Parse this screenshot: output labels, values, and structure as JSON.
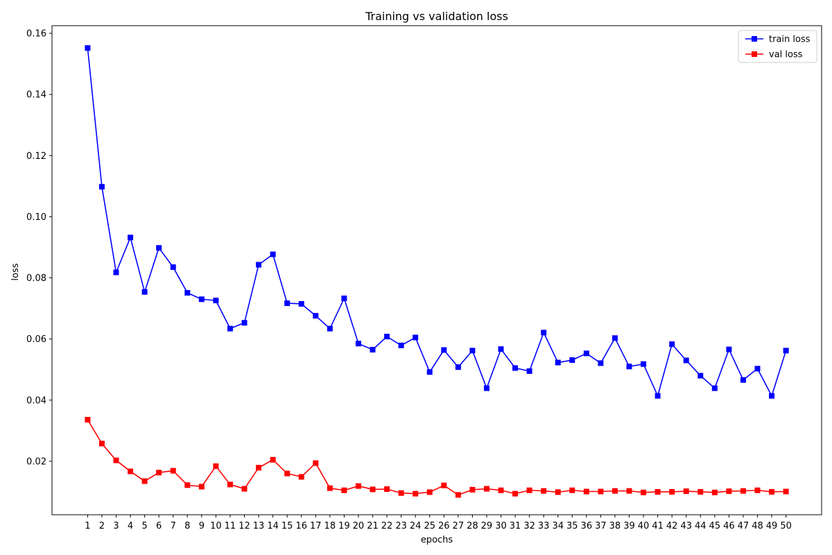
{
  "chart_data": {
    "type": "line",
    "title": "Training vs validation loss",
    "xlabel": "epochs",
    "ylabel": "loss",
    "x": [
      1,
      2,
      3,
      4,
      5,
      6,
      7,
      8,
      9,
      10,
      11,
      12,
      13,
      14,
      15,
      16,
      17,
      18,
      19,
      20,
      21,
      22,
      23,
      24,
      25,
      26,
      27,
      28,
      29,
      30,
      31,
      32,
      33,
      34,
      35,
      36,
      37,
      38,
      39,
      40,
      41,
      42,
      43,
      44,
      45,
      46,
      47,
      48,
      49,
      50
    ],
    "xlim": [
      -1.5,
      52.5
    ],
    "ylim": [
      0.0025,
      0.1625
    ],
    "yticks": [
      0.02,
      0.04,
      0.06,
      0.08,
      0.1,
      0.12,
      0.14,
      0.16
    ],
    "ytick_labels": [
      "0.02",
      "0.04",
      "0.06",
      "0.08",
      "0.10",
      "0.12",
      "0.14",
      "0.16"
    ],
    "grid": false,
    "legend_position": "top-right",
    "series": [
      {
        "name": "train loss",
        "color": "#0000ff",
        "marker": "square",
        "values": [
          0.1552,
          0.1098,
          0.0818,
          0.0932,
          0.0754,
          0.0898,
          0.0835,
          0.0751,
          0.073,
          0.0726,
          0.0634,
          0.0653,
          0.0843,
          0.0877,
          0.0717,
          0.0715,
          0.0676,
          0.0634,
          0.0733,
          0.0585,
          0.0565,
          0.0608,
          0.0579,
          0.0605,
          0.0492,
          0.0564,
          0.0508,
          0.0562,
          0.0439,
          0.0567,
          0.0505,
          0.0495,
          0.0621,
          0.0523,
          0.0531,
          0.0553,
          0.0521,
          0.0603,
          0.051,
          0.0518,
          0.0414,
          0.0583,
          0.053,
          0.048,
          0.0439,
          0.0566,
          0.0466,
          0.0503,
          0.0414,
          0.0562
        ]
      },
      {
        "name": "val loss",
        "color": "#ff0000",
        "marker": "square",
        "values": [
          0.0336,
          0.0258,
          0.0203,
          0.0167,
          0.0135,
          0.0163,
          0.0169,
          0.0122,
          0.0117,
          0.0184,
          0.0124,
          0.011,
          0.0179,
          0.0205,
          0.016,
          0.0149,
          0.0194,
          0.0112,
          0.0105,
          0.0119,
          0.0108,
          0.0109,
          0.0096,
          0.0094,
          0.0099,
          0.0121,
          0.009,
          0.0107,
          0.011,
          0.0105,
          0.0094,
          0.0105,
          0.0103,
          0.0099,
          0.0105,
          0.0101,
          0.0101,
          0.0103,
          0.0103,
          0.0098,
          0.01,
          0.01,
          0.0102,
          0.01,
          0.0098,
          0.0102,
          0.0103,
          0.0105,
          0.01,
          0.0101
        ]
      }
    ]
  }
}
